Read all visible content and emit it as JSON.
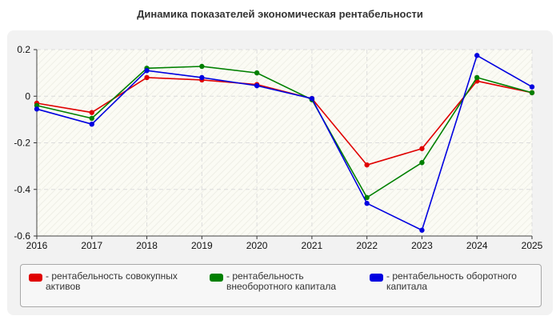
{
  "title": "Динамика показателей экономическая рентабельности",
  "chart_data": {
    "type": "line",
    "title": "Динамика показателей экономическая рентабельности",
    "xlabel": "",
    "ylabel": "",
    "categories": [
      "2016",
      "2017",
      "2018",
      "2019",
      "2020",
      "2021",
      "2022",
      "2023",
      "2024",
      "2025"
    ],
    "ylim": [
      -0.6,
      0.2
    ],
    "yticks": [
      "0.2",
      "0",
      "-0.2",
      "-0.4",
      "-0.6"
    ],
    "grid": true,
    "legend_position": "bottom",
    "series": [
      {
        "name": "- рентабельность совокупных активов",
        "color": "#e00000",
        "values": [
          -0.03,
          -0.07,
          0.08,
          0.07,
          0.05,
          -0.01,
          -0.295,
          -0.225,
          0.065,
          0.015
        ]
      },
      {
        "name": "- рентабельность внеоборотного капитала",
        "color": "#008000",
        "values": [
          -0.04,
          -0.095,
          0.12,
          0.128,
          0.1,
          -0.015,
          -0.435,
          -0.285,
          0.08,
          0.015
        ]
      },
      {
        "name": "- рентабельность оборотного капитала",
        "color": "#0000e0",
        "values": [
          -0.055,
          -0.12,
          0.11,
          0.08,
          0.045,
          -0.01,
          -0.46,
          -0.575,
          0.175,
          0.04
        ]
      }
    ]
  }
}
